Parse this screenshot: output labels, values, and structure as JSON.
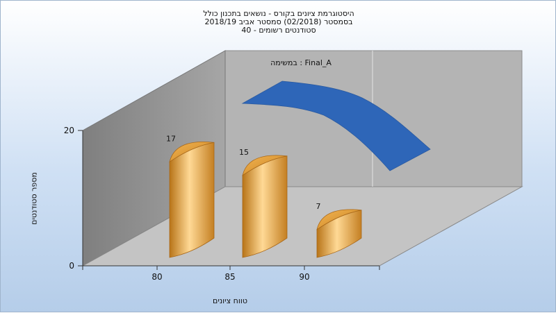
{
  "chart_data": {
    "type": "bar",
    "title_lines": [
      "היסטוגרמת ציונים בקורס - נושאים בתכנון כולל",
      "בסמסטר  (02/2018)  סמסטר אביב 2018/19",
      "סטודנטים רשומים - 40"
    ],
    "xlabel": "טווח ציונים",
    "ylabel": "מספר סטודנטים",
    "categories": [
      "80",
      "85",
      "90"
    ],
    "values": [
      17,
      15,
      7
    ],
    "ylim": [
      0,
      20
    ],
    "yticks": [
      0,
      20
    ],
    "series_label": "במשימה : Final_A",
    "colors": {
      "bar": "#e8a03a",
      "curve": "#2e66b8"
    },
    "grid": false
  }
}
